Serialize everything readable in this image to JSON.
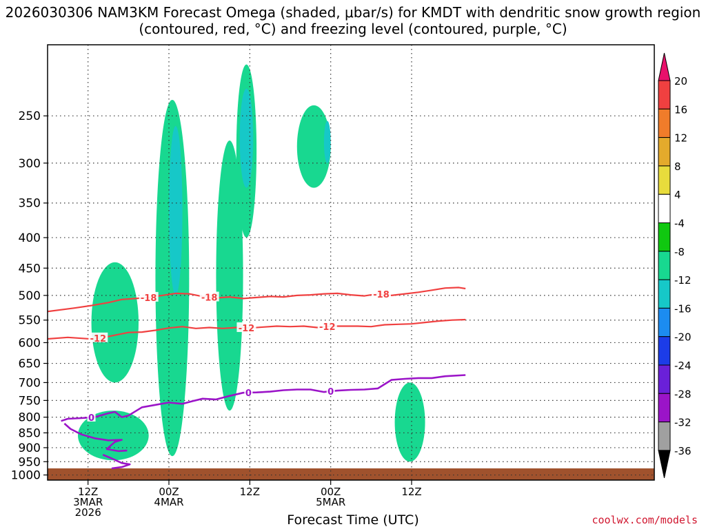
{
  "chart_data": {
    "type": "heatmap",
    "title": "2026030306 NAM3KM Forecast Omega (shaded, μbar/s) for KMDT with dendritic snow growth region (contoured, red, °C) and freezing level (contoured, purple, °C)",
    "xlabel": "Forecast Time (UTC)",
    "ylabel": "",
    "y_axis": {
      "scale": "log-pressure",
      "inverted": true,
      "range": [
        1020,
        190
      ],
      "ticks": [
        250,
        300,
        350,
        400,
        450,
        500,
        550,
        600,
        650,
        700,
        750,
        800,
        850,
        900,
        950,
        1000
      ]
    },
    "x_axis": {
      "range_hours": [
        0,
        90
      ],
      "ticks": [
        {
          "hour": 6,
          "lines": [
            "12Z",
            "3MAR",
            "2026"
          ]
        },
        {
          "hour": 18,
          "lines": [
            "00Z",
            "4MAR"
          ]
        },
        {
          "hour": 30,
          "lines": [
            "12Z"
          ]
        },
        {
          "hour": 42,
          "lines": [
            "00Z",
            "5MAR"
          ]
        },
        {
          "hour": 54,
          "lines": [
            "12Z"
          ]
        }
      ]
    },
    "grid": "dotted",
    "colorbar": {
      "labels": [
        20,
        16,
        12,
        8,
        4,
        -4,
        -8,
        -12,
        -16,
        -20,
        -24,
        -28,
        -32,
        -36
      ],
      "bins": [
        {
          "color": "#e8116b"
        },
        {
          "color": "#f04040"
        },
        {
          "color": "#f07c2a"
        },
        {
          "color": "#e4aa2c"
        },
        {
          "color": "#e8dc3c"
        },
        {
          "color": "#ffffff"
        },
        {
          "color": "#10c810"
        },
        {
          "color": "#18d890"
        },
        {
          "color": "#16c8c8"
        },
        {
          "color": "#1c8cf0"
        },
        {
          "color": "#1c3ce8"
        },
        {
          "color": "#6a20d8"
        },
        {
          "color": "#9b14c8"
        },
        {
          "color": "#a0a0a0"
        },
        {
          "color": "#000000"
        }
      ]
    },
    "contours": {
      "red": [
        {
          "label": "-18",
          "label_at": [
            15.0,
            24.0,
            49.5
          ],
          "points": [
            [
              -0.5,
              533
            ],
            [
              4,
              525
            ],
            [
              6.5,
              520
            ],
            [
              9,
              514
            ],
            [
              11,
              508
            ],
            [
              13,
              506
            ],
            [
              15,
              504
            ],
            [
              17,
              500
            ],
            [
              19,
              496
            ],
            [
              21,
              497
            ],
            [
              23,
              502
            ],
            [
              25,
              505
            ],
            [
              27,
              503
            ],
            [
              29,
              506
            ],
            [
              31,
              504
            ],
            [
              33,
              502
            ],
            [
              35,
              503
            ],
            [
              37,
              500
            ],
            [
              39,
              499
            ],
            [
              41,
              497
            ],
            [
              43,
              496
            ],
            [
              45,
              499
            ],
            [
              47,
              501
            ],
            [
              49,
              497
            ],
            [
              51,
              500
            ],
            [
              53,
              497
            ],
            [
              55,
              494
            ],
            [
              57,
              490
            ],
            [
              59,
              486
            ],
            [
              61,
              485
            ],
            [
              62,
              487
            ]
          ]
        },
        {
          "label": "-12",
          "label_at": [
            7.5,
            29.5,
            41.5
          ],
          "points": [
            [
              -0.5,
              592
            ],
            [
              3,
              588
            ],
            [
              6,
              591
            ],
            [
              8,
              589
            ],
            [
              10,
              583
            ],
            [
              12,
              577
            ],
            [
              14,
              576
            ],
            [
              16,
              572
            ],
            [
              18,
              567
            ],
            [
              20,
              564
            ],
            [
              22,
              568
            ],
            [
              24,
              566
            ],
            [
              26,
              568
            ],
            [
              28,
              566
            ],
            [
              30,
              567
            ],
            [
              32,
              565
            ],
            [
              34,
              563
            ],
            [
              36,
              564
            ],
            [
              38,
              563
            ],
            [
              40,
              566
            ],
            [
              42,
              563
            ],
            [
              44,
              563
            ],
            [
              46,
              563
            ],
            [
              48,
              564
            ],
            [
              50,
              560
            ],
            [
              52,
              559
            ],
            [
              54,
              558
            ],
            [
              56,
              555
            ],
            [
              58,
              552
            ],
            [
              60,
              550
            ],
            [
              62,
              549
            ]
          ]
        }
      ],
      "purple": [
        {
          "label": "0",
          "label_at": [
            29.8,
            42.0,
            6.5
          ],
          "points": [
            [
              2,
              812
            ],
            [
              3,
              805
            ],
            [
              5,
              803
            ],
            [
              7,
              800
            ],
            [
              9,
              788
            ],
            [
              10,
              784
            ],
            [
              11,
              800
            ],
            [
              12,
              795
            ],
            [
              14,
              770
            ],
            [
              16,
              763
            ],
            [
              18,
              756
            ],
            [
              20,
              760
            ],
            [
              21.5,
              752
            ],
            [
              23,
              745
            ],
            [
              25,
              747
            ],
            [
              27,
              737
            ],
            [
              29,
              728
            ],
            [
              31,
              727
            ],
            [
              33,
              725
            ],
            [
              35,
              721
            ],
            [
              37,
              719
            ],
            [
              39,
              719
            ],
            [
              41,
              726
            ],
            [
              43,
              722
            ],
            [
              45,
              720
            ],
            [
              47,
              719
            ],
            [
              49,
              716
            ],
            [
              51,
              693
            ],
            [
              53,
              690
            ],
            [
              55,
              688
            ],
            [
              57,
              688
            ],
            [
              59,
              683
            ],
            [
              62,
              680
            ]
          ]
        },
        {
          "label": "",
          "label_at": [],
          "points": [
            [
              2.5,
              820
            ],
            [
              3.4,
              837
            ],
            [
              5,
              855
            ],
            [
              7,
              868
            ],
            [
              9,
              875
            ],
            [
              11,
              873
            ],
            [
              10,
              880
            ],
            [
              9.5,
              890
            ],
            [
              8.8,
              905
            ],
            [
              10.5,
              912
            ],
            [
              11.8,
              910
            ]
          ]
        },
        {
          "label": "",
          "label_at": [],
          "points": [
            [
              8.2,
              925
            ],
            [
              9.5,
              938
            ],
            [
              11,
              955
            ],
            [
              12.2,
              960
            ],
            [
              11,
              970
            ],
            [
              9.5,
              975
            ]
          ]
        }
      ]
    },
    "shaded": [
      {
        "bin": -8,
        "hour_range": [
          4.5,
          15
        ],
        "p_range": [
          780,
          945
        ]
      },
      {
        "bin": -8,
        "hour_range": [
          6.5,
          13.5
        ],
        "p_range": [
          440,
          700
        ]
      },
      {
        "bin": -8,
        "hour_range": [
          16,
          21
        ],
        "p_range": [
          235,
          930
        ]
      },
      {
        "bin": -8,
        "hour_range": [
          25,
          29
        ],
        "p_range": [
          275,
          780
        ]
      },
      {
        "bin": -8,
        "hour_range": [
          28,
          31
        ],
        "p_range": [
          205,
          400
        ]
      },
      {
        "bin": -8,
        "hour_range": [
          37,
          42
        ],
        "p_range": [
          240,
          330
        ]
      },
      {
        "bin": -8,
        "hour_range": [
          51.5,
          56
        ],
        "p_range": [
          700,
          950
        ]
      },
      {
        "bin": -12,
        "hour_range": [
          18,
          20
        ],
        "p_range": [
          260,
          500
        ]
      },
      {
        "bin": -12,
        "hour_range": [
          28.5,
          30.5
        ],
        "p_range": [
          225,
          330
        ]
      },
      {
        "bin": -12,
        "hour_range": [
          41,
          42
        ],
        "p_range": [
          255,
          300
        ]
      },
      {
        "bin": 4,
        "hour_range": [
          9.5,
          11
        ],
        "p_range": [
          370,
          440
        ]
      },
      {
        "bin": 4,
        "hour_range": [
          46.5,
          48
        ],
        "p_range": [
          315,
          380
        ]
      },
      {
        "bin": 4,
        "hour_range": [
          43,
          44
        ],
        "p_range": [
          480,
          620
        ]
      },
      {
        "bin": 4,
        "hour_range": [
          47.5,
          49
        ],
        "p_range": [
          610,
          750
        ]
      },
      {
        "bin": 4,
        "hour_range": [
          49.5,
          51
        ],
        "p_range": [
          560,
          780
        ]
      }
    ]
  },
  "footer": {
    "credit": "coolwx.com/models"
  }
}
